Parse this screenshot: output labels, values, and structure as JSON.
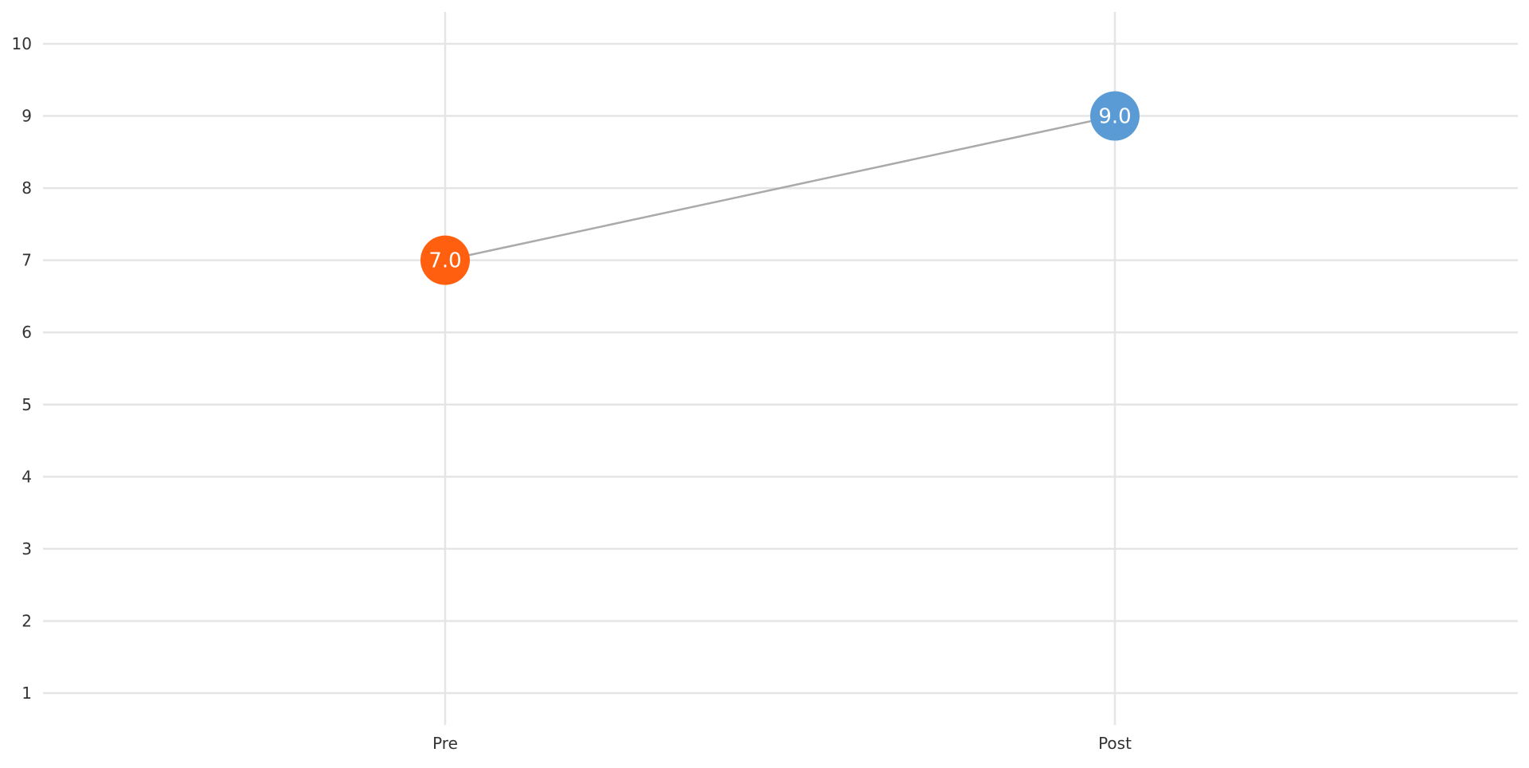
{
  "chart_data": {
    "type": "scatter",
    "title": "",
    "xlabel": "",
    "ylabel": "",
    "categories": [
      "Pre",
      "Post"
    ],
    "y_ticks": [
      "1",
      "2",
      "3",
      "4",
      "5",
      "6",
      "7",
      "8",
      "9",
      "10"
    ],
    "ylim": [
      1,
      10
    ],
    "grid": true,
    "connector": true,
    "points": [
      {
        "category": "Pre",
        "value": 7.0,
        "label": "7.0",
        "color": "#ff5f0e"
      },
      {
        "category": "Post",
        "value": 9.0,
        "label": "9.0",
        "color": "#5b9bd5"
      }
    ],
    "colors": {
      "grid": "#e5e5e5",
      "connector": "#aaaaaa",
      "tick_text": "#333333"
    }
  }
}
